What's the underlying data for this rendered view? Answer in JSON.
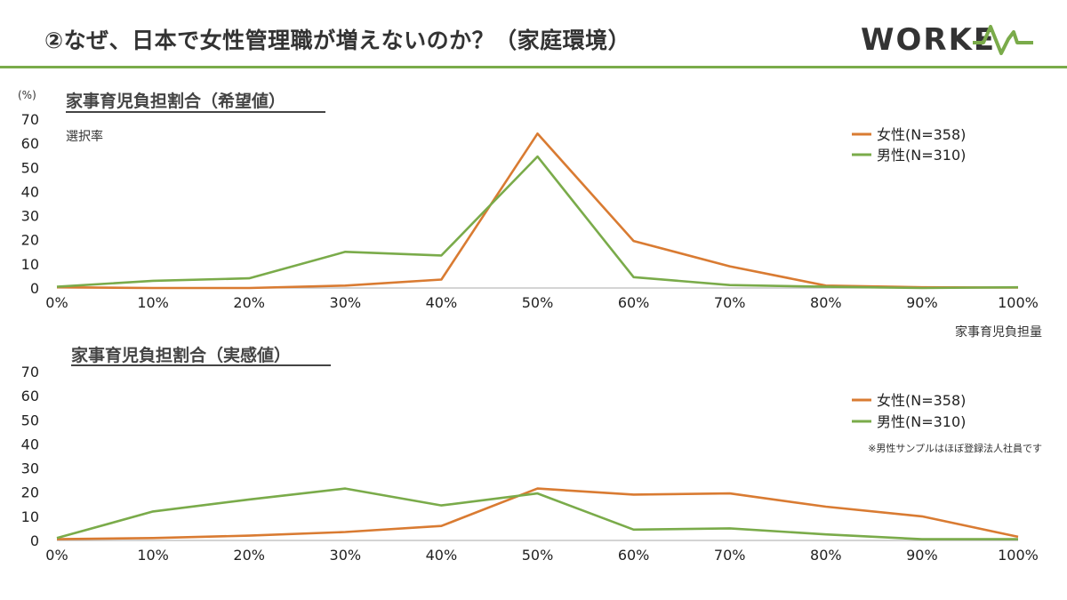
{
  "page": {
    "title": "②なぜ、日本で女性管理職が増えないのか？（家庭環境）",
    "logo_text": "WORKEX",
    "accent_color": "#7aab4a"
  },
  "chart_data": [
    {
      "type": "line",
      "title": "家事育児負担割合（希望値）",
      "unit_label": "(%)",
      "ylabel": "選択率",
      "xlabel": "家事育児負担量",
      "categories": [
        "0%",
        "10%",
        "20%",
        "30%",
        "40%",
        "50%",
        "60%",
        "70%",
        "80%",
        "90%",
        "100%"
      ],
      "ylim": [
        0,
        70
      ],
      "yticks": [
        "0",
        "10",
        "20",
        "30",
        "40",
        "50",
        "60",
        "70"
      ],
      "legend_position": "top-right",
      "grid": false,
      "series": [
        {
          "name": "女性(N=358)",
          "color": "#d97b32",
          "values": [
            0.3,
            0,
            0,
            1,
            3.5,
            64,
            19.5,
            9,
            1,
            0.3,
            0.2
          ]
        },
        {
          "name": "男性(N=310)",
          "color": "#7aab4a",
          "values": [
            0.5,
            3,
            4,
            15,
            13.5,
            54.5,
            4.5,
            1.2,
            0.5,
            0,
            0.3
          ]
        }
      ]
    },
    {
      "type": "line",
      "title": "家事育児負担割合（実感値）",
      "categories": [
        "0%",
        "10%",
        "20%",
        "30%",
        "40%",
        "50%",
        "60%",
        "70%",
        "80%",
        "90%",
        "100%"
      ],
      "ylim": [
        0,
        70
      ],
      "yticks": [
        "0",
        "10",
        "20",
        "30",
        "40",
        "50",
        "60",
        "70"
      ],
      "legend_position": "top-right",
      "grid": false,
      "note": "※男性サンプルはほぼ登録法人社員です",
      "series": [
        {
          "name": "女性(N=358)",
          "color": "#d97b32",
          "values": [
            0.5,
            1,
            2,
            3.5,
            6,
            21.5,
            19,
            19.5,
            14,
            10,
            1.5
          ]
        },
        {
          "name": "男性(N=310)",
          "color": "#7aab4a",
          "values": [
            1,
            12,
            17,
            21.5,
            14.5,
            19.5,
            4.5,
            5,
            2.5,
            0.5,
            0.5
          ]
        }
      ]
    }
  ]
}
